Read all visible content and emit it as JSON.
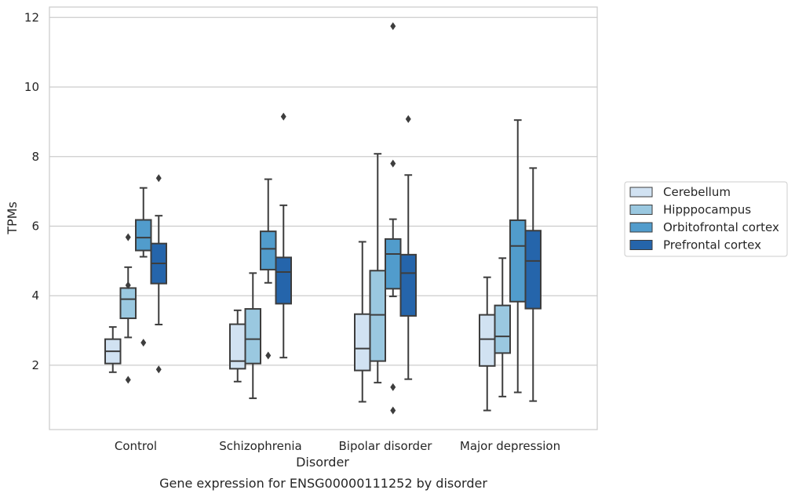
{
  "chart_data": {
    "type": "box",
    "title": "",
    "caption": "Gene expression for ENSG00000111252 by disorder",
    "xlabel": "Disorder",
    "ylabel": "TPMs",
    "categories": [
      "Control",
      "Schizophrenia",
      "Bipolar disorder",
      "Major depression"
    ],
    "ylim": [
      0.15,
      12.3
    ],
    "yticks": [
      2,
      4,
      6,
      8,
      10,
      12
    ],
    "grid": "horizontal",
    "legend_position": "right",
    "colors": {
      "Cerebellum": "#d1e2f2",
      "Hipppocampus": "#9ac8e0",
      "Orbitofrontal cortex": "#519ccc",
      "Prefrontal cortex": "#2565ab",
      "line": "#3d3d3d",
      "grid": "#cccccc",
      "frame": "#cccccc"
    },
    "series": [
      {
        "name": "Cerebellum",
        "boxes": [
          {
            "whisker_low": 1.8,
            "q1": 2.05,
            "median": 2.4,
            "q3": 2.75,
            "whisker_high": 3.1,
            "outliers": []
          },
          {
            "whisker_low": 1.53,
            "q1": 1.9,
            "median": 2.12,
            "q3": 3.18,
            "whisker_high": 3.58,
            "outliers": []
          },
          {
            "whisker_low": 0.95,
            "q1": 1.85,
            "median": 2.48,
            "q3": 3.47,
            "whisker_high": 5.55,
            "outliers": []
          },
          {
            "whisker_low": 0.7,
            "q1": 1.98,
            "median": 2.75,
            "q3": 3.45,
            "whisker_high": 4.53,
            "outliers": []
          }
        ]
      },
      {
        "name": "Hipppocampus",
        "boxes": [
          {
            "whisker_low": 2.8,
            "q1": 3.35,
            "median": 3.9,
            "q3": 4.22,
            "whisker_high": 4.82,
            "outliers": [
              4.3,
              5.68,
              1.58
            ]
          },
          {
            "whisker_low": 1.05,
            "q1": 2.05,
            "median": 2.75,
            "q3": 3.62,
            "whisker_high": 4.65,
            "outliers": []
          },
          {
            "whisker_low": 1.5,
            "q1": 2.12,
            "median": 3.45,
            "q3": 4.72,
            "whisker_high": 8.08,
            "outliers": []
          },
          {
            "whisker_low": 1.1,
            "q1": 2.35,
            "median": 2.83,
            "q3": 3.72,
            "whisker_high": 5.08,
            "outliers": []
          }
        ]
      },
      {
        "name": "Orbitofrontal cortex",
        "boxes": [
          {
            "whisker_low": 5.12,
            "q1": 5.3,
            "median": 5.67,
            "q3": 6.18,
            "whisker_high": 7.1,
            "outliers": [
              2.65
            ]
          },
          {
            "whisker_low": 4.37,
            "q1": 4.75,
            "median": 5.35,
            "q3": 5.85,
            "whisker_high": 7.35,
            "outliers": [
              2.28
            ]
          },
          {
            "whisker_low": 3.98,
            "q1": 4.2,
            "median": 5.2,
            "q3": 5.63,
            "whisker_high": 6.2,
            "outliers": [
              11.75,
              7.8,
              1.37,
              0.7
            ]
          },
          {
            "whisker_low": 1.22,
            "q1": 3.83,
            "median": 5.43,
            "q3": 6.17,
            "whisker_high": 9.05,
            "outliers": []
          }
        ]
      },
      {
        "name": "Prefrontal cortex",
        "boxes": [
          {
            "whisker_low": 3.17,
            "q1": 4.35,
            "median": 4.93,
            "q3": 5.5,
            "whisker_high": 6.3,
            "outliers": [
              7.38,
              1.88
            ]
          },
          {
            "whisker_low": 2.22,
            "q1": 3.77,
            "median": 4.68,
            "q3": 5.1,
            "whisker_high": 6.6,
            "outliers": [
              9.15
            ]
          },
          {
            "whisker_low": 1.6,
            "q1": 3.42,
            "median": 4.65,
            "q3": 5.18,
            "whisker_high": 7.47,
            "outliers": [
              9.08
            ]
          },
          {
            "whisker_low": 0.97,
            "q1": 3.63,
            "median": 5.0,
            "q3": 5.87,
            "whisker_high": 7.67,
            "outliers": []
          }
        ]
      }
    ]
  }
}
